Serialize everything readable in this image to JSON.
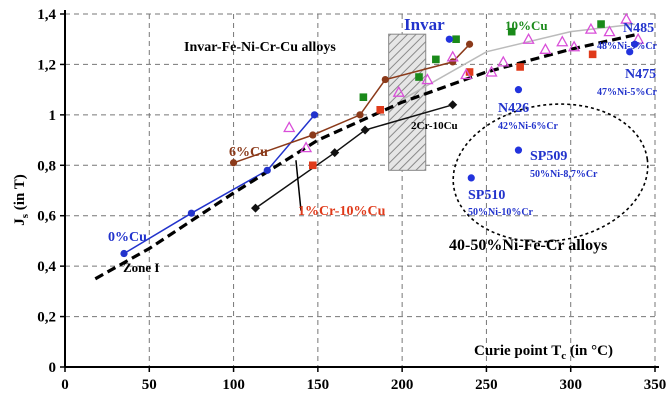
{
  "chart_data": {
    "type": "scatter",
    "title": "",
    "xlabel": "Curie point Tc (in °C)",
    "xlabel_main": "Curie point T",
    "xlabel_sub": "c",
    "xlabel_unit": " (in °C)",
    "ylabel": "Js (in T)",
    "ylabel_main": "J",
    "ylabel_sub": "s",
    "ylabel_unit": " (in T)",
    "xlim": [
      0,
      350
    ],
    "ylim": [
      0,
      1.4
    ],
    "grid": true,
    "x_ticks": [
      "0",
      "50",
      "100",
      "150",
      "200",
      "250",
      "300",
      "350"
    ],
    "y_ticks": [
      "0",
      "0,2",
      "0,4",
      "0,6",
      "0,8",
      "1",
      "1,2",
      "1,4"
    ],
    "series": [
      {
        "color": "#2233cc",
        "marker": "circle",
        "line": true,
        "points": [
          [
            35,
            0.45
          ],
          [
            75,
            0.61
          ],
          [
            120,
            0.78
          ],
          [
            148,
            1.0
          ]
        ]
      },
      {
        "color": "#8b3a1a",
        "marker": "circle",
        "line": true,
        "points": [
          [
            100,
            0.81
          ],
          [
            147,
            0.92
          ],
          [
            175,
            1.0
          ],
          [
            190,
            1.14
          ],
          [
            230,
            1.21
          ],
          [
            240,
            1.28
          ]
        ]
      },
      {
        "color": "#111111",
        "marker": "diamond",
        "line": true,
        "points": [
          [
            113,
            0.63
          ],
          [
            160,
            0.85
          ],
          [
            178,
            0.94
          ],
          [
            230,
            1.04
          ]
        ]
      },
      {
        "color": "#e03a1a",
        "marker": "square",
        "line": false,
        "points": [
          [
            147,
            0.8
          ],
          [
            187,
            1.02
          ],
          [
            240,
            1.17
          ],
          [
            270,
            1.19
          ],
          [
            313,
            1.24
          ]
        ]
      },
      {
        "color": "#1a8a1a",
        "marker": "square",
        "line": false,
        "points": [
          [
            177,
            1.07
          ],
          [
            210,
            1.15
          ],
          [
            220,
            1.22
          ],
          [
            232,
            1.3
          ],
          [
            265,
            1.33
          ],
          [
            318,
            1.36
          ]
        ]
      },
      {
        "color": "#d94fd9",
        "marker": "triangle-open",
        "line": false,
        "points": [
          [
            133,
            0.95
          ],
          [
            143,
            0.87
          ],
          [
            198,
            1.09
          ],
          [
            215,
            1.14
          ],
          [
            230,
            1.23
          ],
          [
            238,
            1.16
          ],
          [
            253,
            1.17
          ],
          [
            260,
            1.21
          ],
          [
            275,
            1.3
          ],
          [
            285,
            1.26
          ],
          [
            295,
            1.29
          ],
          [
            302,
            1.27
          ],
          [
            312,
            1.34
          ],
          [
            323,
            1.33
          ],
          [
            333,
            1.38
          ],
          [
            340,
            1.3
          ]
        ]
      },
      {
        "color": "#2233dd",
        "marker": "circle",
        "line": false,
        "points": [
          [
            228,
            1.3
          ],
          [
            241,
            0.75
          ],
          [
            269,
            1.1
          ],
          [
            269,
            0.86
          ],
          [
            335,
            1.25
          ],
          [
            338,
            1.28
          ]
        ]
      }
    ],
    "trend_line": {
      "color": "#000000",
      "style": "dashed",
      "points": [
        [
          18,
          0.35
        ],
        [
          50,
          0.47
        ],
        [
          100,
          0.69
        ],
        [
          150,
          0.9
        ],
        [
          200,
          1.05
        ],
        [
          250,
          1.17
        ],
        [
          300,
          1.26
        ],
        [
          340,
          1.32
        ]
      ]
    },
    "light_line": {
      "color": "#bbbbbb",
      "points": [
        [
          200,
          1.06
        ],
        [
          250,
          1.25
        ],
        [
          300,
          1.33
        ],
        [
          338,
          1.36
        ]
      ]
    },
    "hatched_band": {
      "x_range": [
        192,
        214
      ],
      "y_range": [
        0.78,
        1.32
      ]
    },
    "ellipse": {
      "cx": 288,
      "cy": 0.77,
      "rx_data": 58,
      "ry_data": 0.27
    },
    "annotations": {
      "invar_label": "Invar",
      "family1": "Invar-Fe-Ni-Cr-Cu alloys",
      "family2": "40-50%Ni-Fe-Cr alloys",
      "cu10": "10%Cu",
      "cu6": "6%Cu",
      "cu0": "0%Cu",
      "zone": "Zone I",
      "cr1cu10": "1%Cr-10%Cu",
      "cr2cu10": "2Cr-10Cu",
      "n485": "N485",
      "n485_comp": "48%Ni-5%Cr",
      "n475": "N475",
      "n475_comp": "47%Ni-5%Cr",
      "n426": "N426",
      "n426_comp": "42%Ni-6%Cr",
      "sp509": "SP509",
      "sp509_comp": "50%Ni-8,7%Cr",
      "sp510": "SP510",
      "sp510_comp": "50%Ni-10%Cr"
    }
  }
}
